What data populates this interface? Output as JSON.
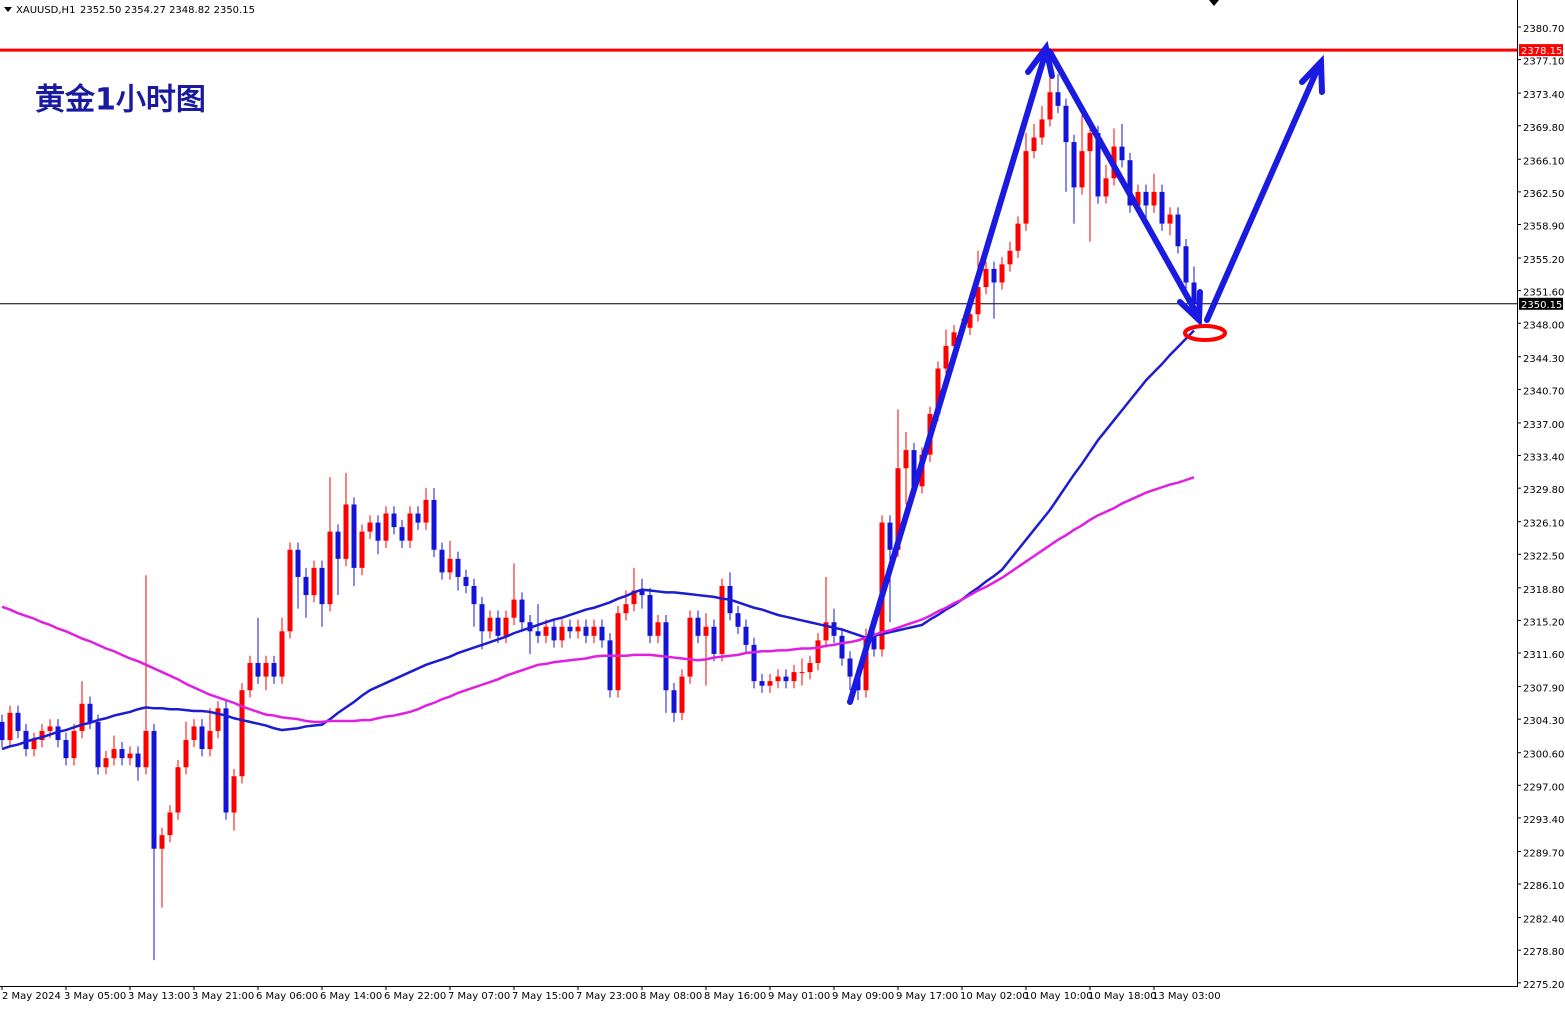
{
  "chart_data": {
    "type": "candlestick",
    "symbol": "XAUUSD,H1",
    "quote": "2352.50 2354.27 2348.82 2350.15",
    "annotation": "黄金1小时图",
    "up_color": "#ff0000",
    "down_color": "#1414d8",
    "categories": [
      "2 May 2024",
      null,
      null,
      null,
      null,
      null,
      null,
      null,
      "3 May 05:00",
      null,
      null,
      null,
      null,
      null,
      null,
      null,
      "3 May 13:00",
      null,
      null,
      null,
      null,
      null,
      null,
      null,
      "3 May 21:00",
      null,
      null,
      null,
      null,
      null,
      null,
      null,
      "6 May 06:00",
      null,
      null,
      null,
      null,
      null,
      null,
      null,
      "6 May 14:00",
      null,
      null,
      null,
      null,
      null,
      null,
      null,
      "6 May 22:00",
      null,
      null,
      null,
      null,
      null,
      null,
      null,
      "7 May 07:00",
      null,
      null,
      null,
      null,
      null,
      null,
      null,
      "7 May 15:00",
      null,
      null,
      null,
      null,
      null,
      null,
      null,
      "7 May 23:00",
      null,
      null,
      null,
      null,
      null,
      null,
      null,
      "8 May 08:00",
      null,
      null,
      null,
      null,
      null,
      null,
      null,
      "8 May 16:00",
      null,
      null,
      null,
      null,
      null,
      null,
      null,
      "9 May 01:00",
      null,
      null,
      null,
      null,
      null,
      null,
      null,
      "9 May 09:00",
      null,
      null,
      null,
      null,
      null,
      null,
      null,
      "9 May 17:00",
      null,
      null,
      null,
      null,
      null,
      null,
      null,
      "10 May 02:00",
      null,
      null,
      null,
      null,
      null,
      null,
      null,
      "10 May 10:00",
      null,
      null,
      null,
      null,
      null,
      null,
      null,
      "10 May 18:00",
      null,
      null,
      null,
      null,
      null,
      null,
      null,
      "13 May 03:00",
      null,
      null,
      null,
      null,
      null
    ],
    "open": [
      2304,
      2302,
      2305,
      2303,
      2301,
      2302,
      2303,
      2303.5,
      2302,
      2300,
      2303,
      2306,
      2304,
      2299,
      2300,
      2301,
      2300,
      2300.5,
      2299,
      2303,
      2290,
      2291.5,
      2294,
      2299,
      2302,
      2303.5,
      2301,
      2303,
      2305.5,
      2294,
      2298,
      2307.5,
      2310.5,
      2309,
      2310.5,
      2309,
      2314,
      2323,
      2320,
      2318,
      2321,
      2317,
      2325,
      2322,
      2328,
      2321,
      2325,
      2326,
      2324,
      2327,
      2325.5,
      2324,
      2327,
      2326,
      2328.5,
      2323,
      2320.5,
      2322,
      2320,
      2319,
      2317,
      2314,
      2315.5,
      2313.5,
      2315.5,
      2317.5,
      2315,
      2314,
      2313.5,
      2314.5,
      2313,
      2314.5,
      2314,
      2314.5,
      2313.5,
      2314.5,
      2313,
      2307.5,
      2316,
      2317,
      2318.5,
      2318,
      2313.5,
      2315,
      2307.5,
      2305,
      2309,
      2315.5,
      2313.5,
      2314.5,
      2311.5,
      2319,
      2316,
      2314.5,
      2312.5,
      2308.5,
      2308,
      2308.5,
      2309,
      2308.5,
      2309.5,
      2309.5,
      2310.5,
      2313,
      2315,
      2313.5,
      2311,
      2309,
      2307.5,
      2313.5,
      2312,
      2326,
      2323,
      2332,
      2334,
      2330,
      2333.5,
      2338,
      2343,
      2345.5,
      2347,
      2347.5,
      2349,
      2352,
      2354,
      2352.5,
      2354.5,
      2356,
      2359,
      2367,
      2368.5,
      2370.5,
      2373.5,
      2372,
      2368,
      2363,
      2367,
      2369,
      2362,
      2364,
      2367.5,
      2366,
      2361,
      2362.5,
      2361,
      2362.5,
      2359,
      2360,
      2356.5,
      2352.5
    ],
    "high": [
      2304.8,
      2305.8,
      2305.8,
      2303.8,
      2302.8,
      2303.8,
      2304.3,
      2304.3,
      2302.8,
      2303.8,
      2308.5,
      2306.8,
      2304.8,
      2300.8,
      2302.5,
      2301.8,
      2301.3,
      2301.3,
      2320.2,
      2303.8,
      2292.3,
      2294.8,
      2299.8,
      2304,
      2304.3,
      2304.3,
      2305.5,
      2306.3,
      2306.3,
      2298.8,
      2308.3,
      2311.3,
      2315.5,
      2311.3,
      2311.3,
      2315.5,
      2323.8,
      2323.8,
      2321,
      2321.8,
      2321.8,
      2331,
      2325.8,
      2331.5,
      2328.8,
      2325.8,
      2326.8,
      2326.8,
      2327.8,
      2327.8,
      2326.3,
      2327.8,
      2327.8,
      2329.8,
      2329.8,
      2323.8,
      2324,
      2322.8,
      2320.8,
      2319.8,
      2317.8,
      2316.3,
      2316.3,
      2316.3,
      2321.5,
      2318.3,
      2315.8,
      2317,
      2315.3,
      2315.3,
      2315.3,
      2315.3,
      2315.3,
      2315.3,
      2315.3,
      2315.3,
      2313.8,
      2316.8,
      2318.5,
      2321,
      2319.8,
      2318.8,
      2315.8,
      2315.8,
      2308.3,
      2309.8,
      2316.3,
      2316.3,
      2316,
      2315.3,
      2319.8,
      2320.5,
      2316.8,
      2315.3,
      2313.3,
      2309.3,
      2309.3,
      2309.8,
      2309.8,
      2310.3,
      2311,
      2311.3,
      2313.8,
      2320,
      2316.5,
      2314.3,
      2311.8,
      2309.8,
      2314.3,
      2314.3,
      2326.8,
      2326.8,
      2338.5,
      2336,
      2334.8,
      2334.3,
      2338.8,
      2343.8,
      2347.3,
      2347.8,
      2348.5,
      2350.8,
      2356,
      2354.8,
      2354.8,
      2355.3,
      2357,
      2359.8,
      2369,
      2370,
      2372,
      2378.4,
      2375.5,
      2372.8,
      2368.8,
      2371,
      2369.8,
      2369.8,
      2365.5,
      2369.5,
      2370,
      2366.8,
      2363.3,
      2363.3,
      2364.5,
      2363.3,
      2360.8,
      2360.8,
      2357.3,
      2354.27
    ],
    "low": [
      2301.2,
      2301.2,
      2302.2,
      2300.2,
      2300.2,
      2301.2,
      2302.2,
      2301.2,
      2299.2,
      2299.2,
      2302.2,
      2303.2,
      2298.2,
      2298.2,
      2299.2,
      2299.2,
      2299.2,
      2297.5,
      2298.2,
      2277.7,
      2283.5,
      2290.7,
      2293.2,
      2298.2,
      2301.2,
      2300.2,
      2300.2,
      2302.2,
      2293.2,
      2292,
      2297.2,
      2306.7,
      2308.2,
      2307.5,
      2308.2,
      2308.2,
      2313.2,
      2316.5,
      2315.5,
      2317.2,
      2314.5,
      2316.2,
      2318,
      2321.2,
      2319,
      2320.2,
      2324.2,
      2322.5,
      2323.2,
      2324.7,
      2323.2,
      2323.2,
      2325.2,
      2325.2,
      2322.2,
      2319.7,
      2319.7,
      2318.5,
      2318.2,
      2314.5,
      2312,
      2313.2,
      2312.7,
      2312.7,
      2314.7,
      2314.2,
      2311.5,
      2312.7,
      2312.7,
      2312.2,
      2312.2,
      2313.2,
      2313.2,
      2312.7,
      2312.7,
      2312.2,
      2306.7,
      2306.7,
      2315.2,
      2316.2,
      2316.5,
      2312.7,
      2312.7,
      2305,
      2304,
      2304.2,
      2308.2,
      2312.7,
      2308,
      2310.7,
      2310.7,
      2315.2,
      2313.7,
      2311.7,
      2307.7,
      2307.2,
      2307.2,
      2307.7,
      2307.7,
      2307.7,
      2308,
      2308.7,
      2309.7,
      2312.2,
      2312.7,
      2310.2,
      2307.5,
      2306.4,
      2306.7,
      2311.2,
      2311.2,
      2315,
      2322.2,
      2328,
      2329.2,
      2329.2,
      2332.7,
      2337.2,
      2342.2,
      2344.7,
      2346.2,
      2346.7,
      2348.2,
      2351.2,
      2348.5,
      2351.7,
      2353.7,
      2355.2,
      2358.2,
      2366.2,
      2367.7,
      2369.7,
      2371.2,
      2362.5,
      2359,
      2362.2,
      2357,
      2361.2,
      2361.2,
      2363.2,
      2365.2,
      2360.2,
      2360.2,
      2359.5,
      2360.2,
      2358.2,
      2357.7,
      2355.7,
      2351.7,
      2348.82
    ],
    "close": [
      2302,
      2305,
      2303,
      2301,
      2302,
      2303,
      2303.5,
      2302,
      2300,
      2303,
      2306,
      2304,
      2299,
      2300,
      2301,
      2300,
      2300.5,
      2299,
      2303,
      2290,
      2291.5,
      2294,
      2299,
      2302,
      2303.5,
      2301,
      2303,
      2305.5,
      2294,
      2298,
      2307.5,
      2310.5,
      2309,
      2310.5,
      2309,
      2314,
      2323,
      2320,
      2318,
      2321,
      2317,
      2325,
      2322,
      2328,
      2321,
      2325,
      2326,
      2324,
      2327,
      2325.5,
      2324,
      2327,
      2326,
      2328.5,
      2323,
      2320.5,
      2322,
      2320,
      2319,
      2317,
      2314,
      2315.5,
      2313.5,
      2315.5,
      2317.5,
      2315,
      2314,
      2313.5,
      2314.5,
      2313,
      2314.5,
      2314,
      2314.5,
      2313.5,
      2314.5,
      2313,
      2307.5,
      2316,
      2317,
      2318.5,
      2318,
      2313.5,
      2315,
      2307.5,
      2305,
      2309,
      2315.5,
      2313.5,
      2314.5,
      2311.5,
      2319,
      2316,
      2314.5,
      2312.5,
      2308.5,
      2308,
      2308.5,
      2309,
      2308.5,
      2309.5,
      2309.5,
      2310.5,
      2313,
      2315,
      2313.5,
      2311,
      2309,
      2307.5,
      2313.5,
      2312,
      2326,
      2323,
      2332,
      2334,
      2330,
      2333.5,
      2338,
      2343,
      2345.5,
      2347,
      2347.5,
      2349,
      2352,
      2354,
      2352.5,
      2354.5,
      2356,
      2359,
      2367,
      2368.5,
      2370.5,
      2373.5,
      2372,
      2368,
      2363,
      2367,
      2369,
      2362,
      2364,
      2367.5,
      2366,
      2361,
      2362.5,
      2361,
      2362.5,
      2359,
      2360,
      2356.5,
      2352.5,
      2350.15
    ],
    "series": [
      {
        "type": "line",
        "color": "#1c1cd0",
        "values": [
          2301.0,
          2301.3,
          2301.5,
          2301.8,
          2302.1,
          2302.3,
          2302.6,
          2302.9,
          2303.1,
          2303.4,
          2303.7,
          2303.9,
          2304.2,
          2304.4,
          2304.7,
          2304.9,
          2305.1,
          2305.4,
          2305.6,
          2305.5,
          2305.5,
          2305.4,
          2305.4,
          2305.3,
          2305.2,
          2305.2,
          2305.1,
          2304.9,
          2304.7,
          2304.4,
          2304.2,
          2304.0,
          2303.8,
          2303.6,
          2303.3,
          2303.1,
          2303.2,
          2303.3,
          2303.5,
          2303.6,
          2303.7,
          2304.3,
          2305.0,
          2305.6,
          2306.2,
          2306.9,
          2307.5,
          2307.9,
          2308.3,
          2308.7,
          2309.1,
          2309.5,
          2309.9,
          2310.3,
          2310.6,
          2310.9,
          2311.2,
          2311.6,
          2311.9,
          2312.2,
          2312.5,
          2312.8,
          2313.1,
          2313.4,
          2313.8,
          2314.1,
          2314.4,
          2314.7,
          2315.0,
          2315.3,
          2315.5,
          2315.8,
          2316.1,
          2316.4,
          2316.6,
          2316.9,
          2317.2,
          2317.6,
          2317.9,
          2318.3,
          2318.6,
          2318.5,
          2318.4,
          2318.3,
          2318.3,
          2318.2,
          2318.1,
          2318.0,
          2317.9,
          2317.8,
          2317.6,
          2317.5,
          2317.2,
          2316.9,
          2316.6,
          2316.4,
          2316.1,
          2315.8,
          2315.6,
          2315.4,
          2315.2,
          2315.0,
          2314.8,
          2314.6,
          2314.4,
          2314.2,
          2313.9,
          2313.6,
          2313.3,
          2313.5,
          2313.7,
          2313.9,
          2314.1,
          2314.3,
          2314.5,
          2314.7,
          2315.3,
          2315.8,
          2316.4,
          2316.9,
          2317.5,
          2318.2,
          2318.8,
          2319.5,
          2320.1,
          2320.8,
          2321.9,
          2323.0,
          2324.1,
          2325.2,
          2326.3,
          2327.4,
          2328.7,
          2330.0,
          2331.3,
          2332.5,
          2333.8,
          2335.1,
          2336.2,
          2337.3,
          2338.4,
          2339.5,
          2340.6,
          2341.7,
          2342.6,
          2343.5,
          2344.5,
          2345.4,
          2346.3,
          2347.2
        ]
      },
      {
        "type": "line",
        "color": "#e020e0",
        "values": [
          2316.7,
          2316.4,
          2316.0,
          2315.7,
          2315.4,
          2315.0,
          2314.7,
          2314.3,
          2314.0,
          2313.6,
          2313.2,
          2312.9,
          2312.5,
          2312.1,
          2311.8,
          2311.4,
          2311.0,
          2310.7,
          2310.3,
          2309.9,
          2309.5,
          2309.1,
          2308.7,
          2308.2,
          2307.8,
          2307.4,
          2307.0,
          2306.7,
          2306.4,
          2306.1,
          2305.7,
          2305.4,
          2305.1,
          2304.8,
          2304.7,
          2304.5,
          2304.4,
          2304.3,
          2304.1,
          2304.0,
          2304.0,
          2304.1,
          2304.1,
          2304.1,
          2304.1,
          2304.2,
          2304.2,
          2304.4,
          2304.6,
          2304.7,
          2304.9,
          2305.1,
          2305.4,
          2305.8,
          2306.1,
          2306.5,
          2306.8,
          2307.2,
          2307.5,
          2307.8,
          2308.1,
          2308.4,
          2308.7,
          2309.1,
          2309.4,
          2309.7,
          2310.0,
          2310.3,
          2310.4,
          2310.6,
          2310.7,
          2310.8,
          2310.9,
          2311.0,
          2311.2,
          2311.3,
          2311.3,
          2311.3,
          2311.3,
          2311.4,
          2311.4,
          2311.4,
          2311.3,
          2311.2,
          2311.1,
          2311.0,
          2310.9,
          2310.8,
          2310.9,
          2311.1,
          2311.2,
          2311.3,
          2311.4,
          2311.6,
          2311.7,
          2311.8,
          2311.8,
          2311.9,
          2311.9,
          2312.0,
          2312.1,
          2312.1,
          2312.2,
          2312.4,
          2312.5,
          2312.7,
          2312.8,
          2313.0,
          2313.3,
          2313.6,
          2313.9,
          2314.1,
          2314.4,
          2314.7,
          2315.0,
          2315.3,
          2315.7,
          2316.2,
          2316.6,
          2317.1,
          2317.5,
          2318.0,
          2318.5,
          2318.9,
          2319.4,
          2319.9,
          2320.5,
          2321.1,
          2321.7,
          2322.3,
          2322.9,
          2323.5,
          2324.1,
          2324.6,
          2325.2,
          2325.7,
          2326.3,
          2326.8,
          2327.2,
          2327.6,
          2328.1,
          2328.5,
          2328.9,
          2329.3,
          2329.6,
          2329.9,
          2330.2,
          2330.4,
          2330.7,
          2331.0
        ]
      }
    ],
    "hlines": [
      {
        "value": 2378.15,
        "label": "2378.15",
        "color": "#ff0000"
      },
      {
        "value": 2350.15,
        "label": "2350.15",
        "color": "#000000"
      }
    ],
    "ylim": [
      2274.85,
      2383.68
    ],
    "yticks": [
      {
        "value": 2380.7,
        "label": "2380.70"
      },
      {
        "value": 2377.1,
        "label": "2377.10"
      },
      {
        "value": 2373.4,
        "label": "2373.40"
      },
      {
        "value": 2369.8,
        "label": "2369.80"
      },
      {
        "value": 2366.1,
        "label": "2366.10"
      },
      {
        "value": 2362.5,
        "label": "2362.50"
      },
      {
        "value": 2358.9,
        "label": "2358.90"
      },
      {
        "value": 2355.2,
        "label": "2355.20"
      },
      {
        "value": 2351.6,
        "label": "2351.60"
      },
      {
        "value": 2348,
        "label": "2348.00"
      },
      {
        "value": 2344.3,
        "label": "2344.30"
      },
      {
        "value": 2340.7,
        "label": "2340.70"
      },
      {
        "value": 2337,
        "label": "2337.00"
      },
      {
        "value": 2333.4,
        "label": "2333.40"
      },
      {
        "value": 2329.8,
        "label": "2329.80"
      },
      {
        "value": 2326.1,
        "label": "2326.10"
      },
      {
        "value": 2322.5,
        "label": "2322.50"
      },
      {
        "value": 2318.8,
        "label": "2318.80"
      },
      {
        "value": 2315.2,
        "label": "2315.20"
      },
      {
        "value": 2311.6,
        "label": "2311.60"
      },
      {
        "value": 2307.9,
        "label": "2307.90"
      },
      {
        "value": 2304.3,
        "label": "2304.30"
      },
      {
        "value": 2300.6,
        "label": "2300.60"
      },
      {
        "value": 2297,
        "label": "2297.00"
      },
      {
        "value": 2293.4,
        "label": "2293.40"
      },
      {
        "value": 2289.7,
        "label": "2289.70"
      },
      {
        "value": 2286.1,
        "label": "2286.10"
      },
      {
        "value": 2282.4,
        "label": "2282.40"
      },
      {
        "value": 2278.8,
        "label": "2278.80"
      },
      {
        "value": 2275.2,
        "label": "2275.20"
      }
    ],
    "grid": false
  }
}
